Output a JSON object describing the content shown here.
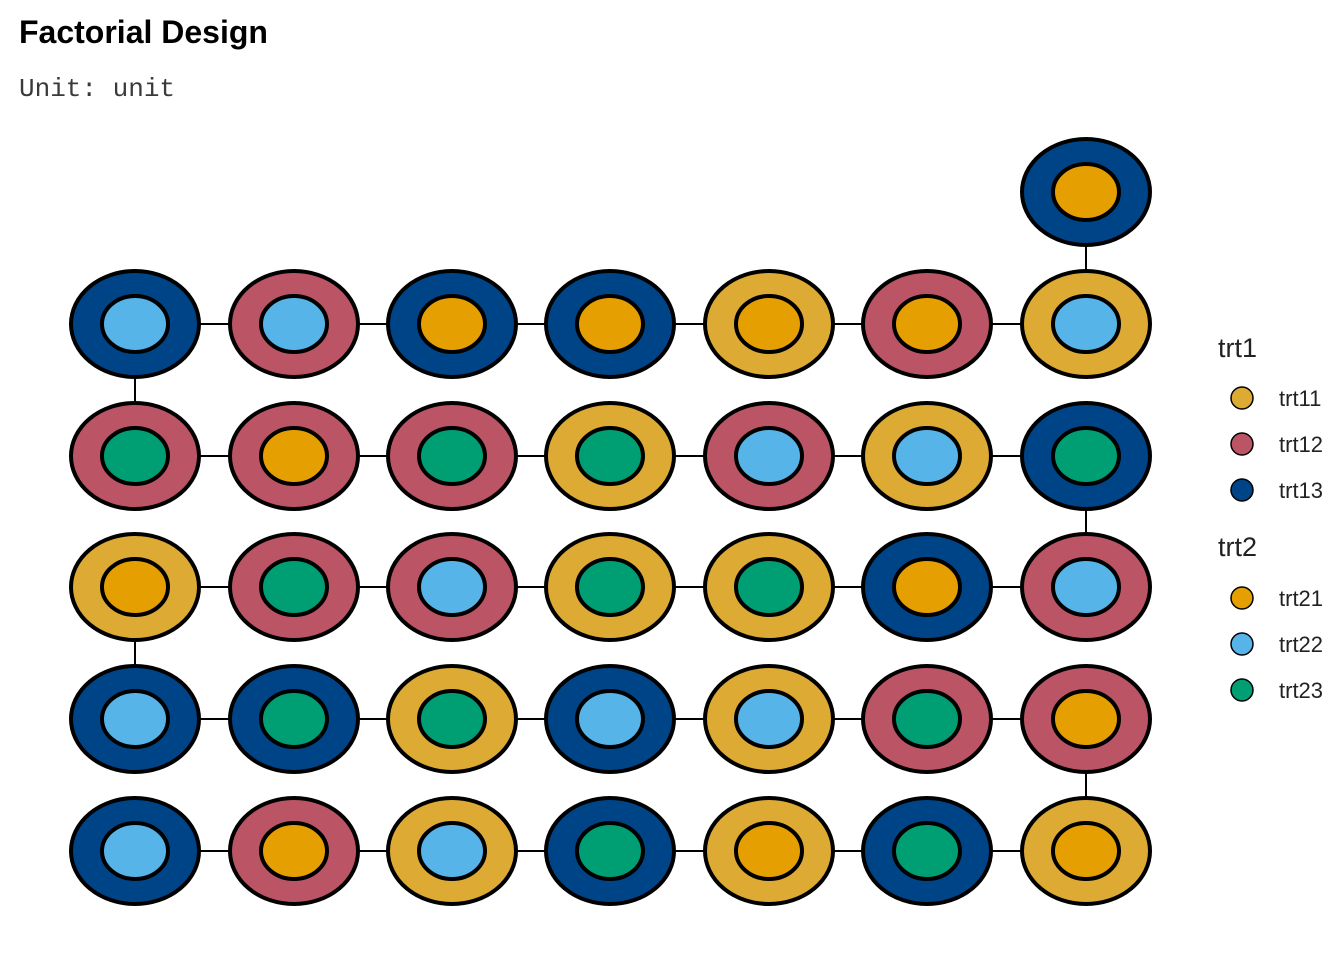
{
  "title": "Factorial Design",
  "subtitle": "Unit: unit",
  "legend": {
    "groups": [
      {
        "title": "trt1",
        "items": [
          {
            "label": "trt11",
            "color": "#DDAA33"
          },
          {
            "label": "trt12",
            "color": "#BB5566"
          },
          {
            "label": "trt13",
            "color": "#004488"
          }
        ]
      },
      {
        "title": "trt2",
        "items": [
          {
            "label": "trt21",
            "color": "#E69F00"
          },
          {
            "label": "trt22",
            "color": "#56B4E9"
          },
          {
            "label": "trt23",
            "color": "#009E73"
          }
        ]
      }
    ]
  },
  "design": {
    "path_order": "serpentine, starting bottom-left, ending at extra top-right unit",
    "rows_top_to_bottom": [
      [
        null,
        null,
        null,
        null,
        null,
        null,
        [
          "trt13",
          "trt21"
        ]
      ],
      [
        [
          "trt13",
          "trt22"
        ],
        [
          "trt12",
          "trt22"
        ],
        [
          "trt13",
          "trt21"
        ],
        [
          "trt13",
          "trt21"
        ],
        [
          "trt11",
          "trt21"
        ],
        [
          "trt12",
          "trt21"
        ],
        [
          "trt11",
          "trt22"
        ]
      ],
      [
        [
          "trt12",
          "trt23"
        ],
        [
          "trt12",
          "trt21"
        ],
        [
          "trt12",
          "trt23"
        ],
        [
          "trt11",
          "trt23"
        ],
        [
          "trt12",
          "trt22"
        ],
        [
          "trt11",
          "trt22"
        ],
        [
          "trt13",
          "trt23"
        ]
      ],
      [
        [
          "trt11",
          "trt21"
        ],
        [
          "trt12",
          "trt23"
        ],
        [
          "trt12",
          "trt22"
        ],
        [
          "trt11",
          "trt23"
        ],
        [
          "trt11",
          "trt23"
        ],
        [
          "trt13",
          "trt21"
        ],
        [
          "trt12",
          "trt22"
        ]
      ],
      [
        [
          "trt13",
          "trt22"
        ],
        [
          "trt13",
          "trt23"
        ],
        [
          "trt11",
          "trt23"
        ],
        [
          "trt13",
          "trt22"
        ],
        [
          "trt11",
          "trt22"
        ],
        [
          "trt12",
          "trt23"
        ],
        [
          "trt12",
          "trt21"
        ]
      ],
      [
        [
          "trt13",
          "trt22"
        ],
        [
          "trt12",
          "trt21"
        ],
        [
          "trt11",
          "trt22"
        ],
        [
          "trt13",
          "trt23"
        ],
        [
          "trt11",
          "trt21"
        ],
        [
          "trt13",
          "trt23"
        ],
        [
          "trt11",
          "trt21"
        ]
      ]
    ]
  }
}
